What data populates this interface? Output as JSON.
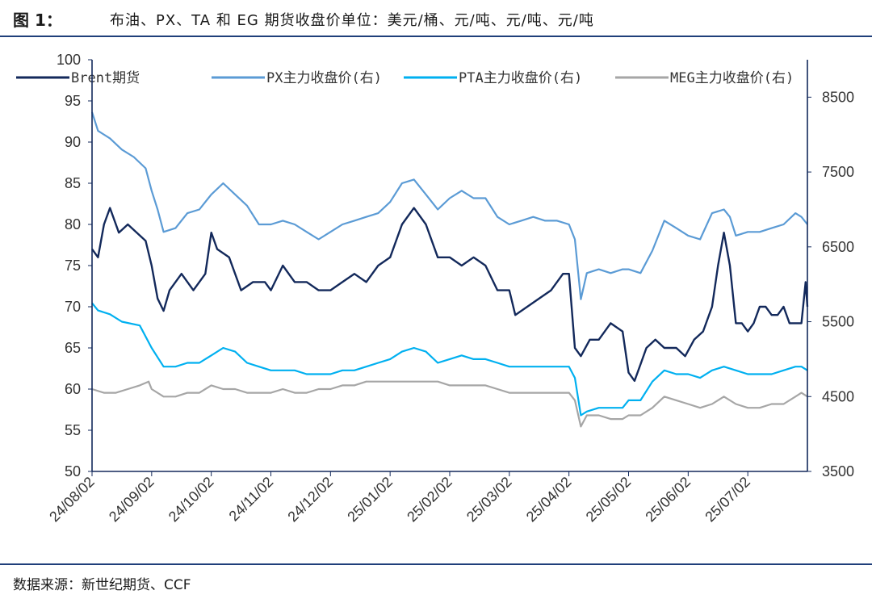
{
  "figure": {
    "label": "图 1：",
    "title": "布油、PX、TA 和 EG 期货收盘价单位：美元/桶、元/吨、元/吨、元/吨",
    "source": "数据来源：新世纪期货、CCF"
  },
  "chart_data": {
    "type": "line",
    "title": "布油、PX、TA 和 EG 期货收盘价",
    "x_ticks": [
      "24/08/02",
      "24/09/02",
      "24/10/02",
      "24/11/02",
      "24/12/02",
      "25/01/02",
      "25/02/02",
      "25/03/02",
      "25/04/02",
      "25/05/02",
      "25/06/02",
      "25/07/02"
    ],
    "y_left": {
      "min": 50,
      "max": 100,
      "ticks": [
        "50",
        "55",
        "60",
        "65",
        "70",
        "75",
        "80",
        "85",
        "90",
        "95",
        "100"
      ]
    },
    "y_right": {
      "min": 3500,
      "max": 9000,
      "ticks": [
        "3500",
        "4500",
        "5500",
        "6500",
        "7500",
        "8500"
      ]
    },
    "legend_position": "top",
    "series": [
      {
        "name": "Brent期货",
        "axis": "left",
        "color": "#13295b",
        "points": [
          [
            0,
            77
          ],
          [
            0.1,
            76
          ],
          [
            0.2,
            80
          ],
          [
            0.3,
            82
          ],
          [
            0.45,
            79
          ],
          [
            0.6,
            80
          ],
          [
            0.75,
            79
          ],
          [
            0.9,
            78
          ],
          [
            1.0,
            75
          ],
          [
            1.1,
            71
          ],
          [
            1.2,
            69.5
          ],
          [
            1.3,
            72
          ],
          [
            1.5,
            74
          ],
          [
            1.7,
            72
          ],
          [
            1.9,
            74
          ],
          [
            2.0,
            79
          ],
          [
            2.1,
            77
          ],
          [
            2.3,
            76
          ],
          [
            2.5,
            72
          ],
          [
            2.7,
            73
          ],
          [
            2.9,
            73
          ],
          [
            3.0,
            72
          ],
          [
            3.2,
            75
          ],
          [
            3.4,
            73
          ],
          [
            3.6,
            73
          ],
          [
            3.8,
            72
          ],
          [
            4.0,
            72
          ],
          [
            4.2,
            73
          ],
          [
            4.4,
            74
          ],
          [
            4.6,
            73
          ],
          [
            4.8,
            75
          ],
          [
            5.0,
            76
          ],
          [
            5.2,
            80
          ],
          [
            5.4,
            82
          ],
          [
            5.6,
            80
          ],
          [
            5.8,
            76
          ],
          [
            6.0,
            76
          ],
          [
            6.2,
            75
          ],
          [
            6.4,
            76
          ],
          [
            6.6,
            75
          ],
          [
            6.8,
            72
          ],
          [
            7.0,
            72
          ],
          [
            7.1,
            69
          ],
          [
            7.3,
            70
          ],
          [
            7.5,
            71
          ],
          [
            7.7,
            72
          ],
          [
            7.9,
            74
          ],
          [
            8.0,
            74
          ],
          [
            8.1,
            65
          ],
          [
            8.2,
            64
          ],
          [
            8.35,
            66
          ],
          [
            8.5,
            66
          ],
          [
            8.7,
            68
          ],
          [
            8.9,
            67
          ],
          [
            9.0,
            62
          ],
          [
            9.1,
            61
          ],
          [
            9.2,
            63
          ],
          [
            9.3,
            65
          ],
          [
            9.45,
            66
          ],
          [
            9.6,
            65
          ],
          [
            9.8,
            65
          ],
          [
            9.95,
            64
          ],
          [
            10.1,
            66
          ],
          [
            10.25,
            67
          ],
          [
            10.4,
            70
          ],
          [
            10.5,
            75
          ],
          [
            10.6,
            79
          ],
          [
            10.7,
            75
          ],
          [
            10.8,
            68
          ],
          [
            10.9,
            68
          ],
          [
            11.0,
            67
          ],
          [
            11.1,
            68
          ],
          [
            11.2,
            70
          ],
          [
            11.3,
            70
          ],
          [
            11.4,
            69
          ],
          [
            11.5,
            69
          ],
          [
            11.6,
            70
          ],
          [
            11.7,
            68
          ],
          [
            11.8,
            68
          ],
          [
            11.9,
            68
          ],
          [
            11.97,
            73
          ],
          [
            12.0,
            70
          ]
        ]
      },
      {
        "name": "PX主力收盘价(右)",
        "axis": "right",
        "color": "#5b9bd5",
        "points": [
          [
            0,
            8300
          ],
          [
            0.1,
            8050
          ],
          [
            0.3,
            7950
          ],
          [
            0.5,
            7800
          ],
          [
            0.7,
            7700
          ],
          [
            0.9,
            7550
          ],
          [
            1.0,
            7250
          ],
          [
            1.1,
            7000
          ],
          [
            1.2,
            6700
          ],
          [
            1.4,
            6750
          ],
          [
            1.6,
            6950
          ],
          [
            1.8,
            7000
          ],
          [
            2.0,
            7200
          ],
          [
            2.2,
            7350
          ],
          [
            2.4,
            7200
          ],
          [
            2.6,
            7050
          ],
          [
            2.8,
            6800
          ],
          [
            3.0,
            6800
          ],
          [
            3.2,
            6850
          ],
          [
            3.4,
            6800
          ],
          [
            3.6,
            6700
          ],
          [
            3.8,
            6600
          ],
          [
            4.0,
            6700
          ],
          [
            4.2,
            6800
          ],
          [
            4.4,
            6850
          ],
          [
            4.6,
            6900
          ],
          [
            4.8,
            6950
          ],
          [
            5.0,
            7100
          ],
          [
            5.2,
            7350
          ],
          [
            5.4,
            7400
          ],
          [
            5.6,
            7200
          ],
          [
            5.8,
            7000
          ],
          [
            6.0,
            7150
          ],
          [
            6.2,
            7250
          ],
          [
            6.4,
            7150
          ],
          [
            6.6,
            7150
          ],
          [
            6.8,
            6900
          ],
          [
            7.0,
            6800
          ],
          [
            7.2,
            6850
          ],
          [
            7.4,
            6900
          ],
          [
            7.6,
            6850
          ],
          [
            7.8,
            6850
          ],
          [
            8.0,
            6800
          ],
          [
            8.1,
            6600
          ],
          [
            8.2,
            5800
          ],
          [
            8.3,
            6150
          ],
          [
            8.5,
            6200
          ],
          [
            8.7,
            6150
          ],
          [
            8.9,
            6200
          ],
          [
            9.0,
            6200
          ],
          [
            9.2,
            6150
          ],
          [
            9.4,
            6450
          ],
          [
            9.6,
            6850
          ],
          [
            9.8,
            6750
          ],
          [
            10.0,
            6650
          ],
          [
            10.2,
            6600
          ],
          [
            10.4,
            6950
          ],
          [
            10.6,
            7000
          ],
          [
            10.7,
            6900
          ],
          [
            10.8,
            6650
          ],
          [
            11.0,
            6700
          ],
          [
            11.2,
            6700
          ],
          [
            11.4,
            6750
          ],
          [
            11.6,
            6800
          ],
          [
            11.8,
            6950
          ],
          [
            11.9,
            6900
          ],
          [
            12.0,
            6800
          ]
        ]
      },
      {
        "name": "PTA主力收盘价(右)",
        "axis": "right",
        "color": "#00b0f0",
        "points": [
          [
            0,
            5750
          ],
          [
            0.1,
            5650
          ],
          [
            0.3,
            5600
          ],
          [
            0.5,
            5500
          ],
          [
            0.8,
            5450
          ],
          [
            1.0,
            5150
          ],
          [
            1.2,
            4900
          ],
          [
            1.4,
            4900
          ],
          [
            1.6,
            4950
          ],
          [
            1.8,
            4950
          ],
          [
            2.0,
            5050
          ],
          [
            2.2,
            5150
          ],
          [
            2.4,
            5100
          ],
          [
            2.6,
            4950
          ],
          [
            2.8,
            4900
          ],
          [
            3.0,
            4850
          ],
          [
            3.2,
            4850
          ],
          [
            3.4,
            4850
          ],
          [
            3.6,
            4800
          ],
          [
            3.8,
            4800
          ],
          [
            4.0,
            4800
          ],
          [
            4.2,
            4850
          ],
          [
            4.4,
            4850
          ],
          [
            4.6,
            4900
          ],
          [
            4.8,
            4950
          ],
          [
            5.0,
            5000
          ],
          [
            5.2,
            5100
          ],
          [
            5.4,
            5150
          ],
          [
            5.6,
            5100
          ],
          [
            5.8,
            4950
          ],
          [
            6.0,
            5000
          ],
          [
            6.2,
            5050
          ],
          [
            6.4,
            5000
          ],
          [
            6.6,
            5000
          ],
          [
            6.8,
            4950
          ],
          [
            7.0,
            4900
          ],
          [
            7.2,
            4900
          ],
          [
            7.4,
            4900
          ],
          [
            7.6,
            4900
          ],
          [
            7.8,
            4900
          ],
          [
            8.0,
            4900
          ],
          [
            8.1,
            4750
          ],
          [
            8.2,
            4250
          ],
          [
            8.3,
            4300
          ],
          [
            8.5,
            4350
          ],
          [
            8.7,
            4350
          ],
          [
            8.9,
            4350
          ],
          [
            9.0,
            4450
          ],
          [
            9.2,
            4450
          ],
          [
            9.4,
            4700
          ],
          [
            9.6,
            4850
          ],
          [
            9.8,
            4800
          ],
          [
            10.0,
            4800
          ],
          [
            10.2,
            4750
          ],
          [
            10.4,
            4850
          ],
          [
            10.6,
            4900
          ],
          [
            10.8,
            4850
          ],
          [
            11.0,
            4800
          ],
          [
            11.2,
            4800
          ],
          [
            11.4,
            4800
          ],
          [
            11.6,
            4850
          ],
          [
            11.8,
            4900
          ],
          [
            11.9,
            4900
          ],
          [
            12.0,
            4850
          ]
        ]
      },
      {
        "name": "MEG主力收盘价(右)",
        "axis": "right",
        "color": "#a6a6a6",
        "points": [
          [
            0,
            4600
          ],
          [
            0.2,
            4550
          ],
          [
            0.4,
            4550
          ],
          [
            0.6,
            4600
          ],
          [
            0.8,
            4650
          ],
          [
            0.95,
            4700
          ],
          [
            1.0,
            4600
          ],
          [
            1.2,
            4500
          ],
          [
            1.4,
            4500
          ],
          [
            1.6,
            4550
          ],
          [
            1.8,
            4550
          ],
          [
            2.0,
            4650
          ],
          [
            2.2,
            4600
          ],
          [
            2.4,
            4600
          ],
          [
            2.6,
            4550
          ],
          [
            2.8,
            4550
          ],
          [
            3.0,
            4550
          ],
          [
            3.2,
            4600
          ],
          [
            3.4,
            4550
          ],
          [
            3.6,
            4550
          ],
          [
            3.8,
            4600
          ],
          [
            4.0,
            4600
          ],
          [
            4.2,
            4650
          ],
          [
            4.4,
            4650
          ],
          [
            4.6,
            4700
          ],
          [
            4.8,
            4700
          ],
          [
            5.0,
            4700
          ],
          [
            5.2,
            4700
          ],
          [
            5.4,
            4700
          ],
          [
            5.6,
            4700
          ],
          [
            5.8,
            4700
          ],
          [
            6.0,
            4650
          ],
          [
            6.2,
            4650
          ],
          [
            6.4,
            4650
          ],
          [
            6.6,
            4650
          ],
          [
            6.8,
            4600
          ],
          [
            7.0,
            4550
          ],
          [
            7.2,
            4550
          ],
          [
            7.4,
            4550
          ],
          [
            7.6,
            4550
          ],
          [
            7.8,
            4550
          ],
          [
            8.0,
            4550
          ],
          [
            8.1,
            4450
          ],
          [
            8.2,
            4100
          ],
          [
            8.3,
            4250
          ],
          [
            8.5,
            4250
          ],
          [
            8.7,
            4200
          ],
          [
            8.9,
            4200
          ],
          [
            9.0,
            4250
          ],
          [
            9.2,
            4250
          ],
          [
            9.4,
            4350
          ],
          [
            9.6,
            4500
          ],
          [
            9.8,
            4450
          ],
          [
            10.0,
            4400
          ],
          [
            10.2,
            4350
          ],
          [
            10.4,
            4400
          ],
          [
            10.6,
            4500
          ],
          [
            10.8,
            4400
          ],
          [
            11.0,
            4350
          ],
          [
            11.2,
            4350
          ],
          [
            11.4,
            4400
          ],
          [
            11.6,
            4400
          ],
          [
            11.8,
            4500
          ],
          [
            11.9,
            4550
          ],
          [
            12.0,
            4500
          ]
        ]
      }
    ]
  }
}
